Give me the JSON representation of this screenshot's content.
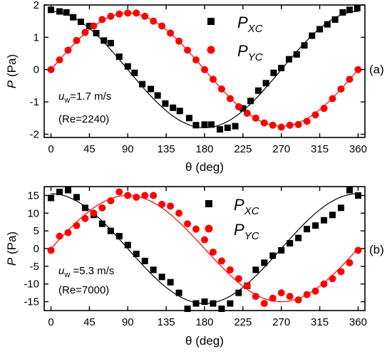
{
  "colors": {
    "xc": "#000000",
    "yc": "#ff0000"
  },
  "chart_data": [
    {
      "type": "scatter",
      "panel_label": "(a)",
      "ylabel": {
        "symbol": "P",
        "unit": " (Pa)"
      },
      "xlabel": {
        "symbol": "θ",
        "unit": " (deg)"
      },
      "xlim": [
        -8,
        368
      ],
      "ylim": [
        -2.1,
        2.0
      ],
      "x_ticks": [
        0,
        45,
        90,
        135,
        180,
        225,
        270,
        315,
        360
      ],
      "y_ticks": [
        -2,
        -1,
        0,
        1,
        2
      ],
      "annotation": {
        "u_symbol": "u",
        "u_sub": "w",
        "u_value": "=1.7 m/s",
        "re": "(Re=2240)"
      },
      "legend": {
        "placement": "top-right",
        "entries": [
          {
            "base": "P",
            "sub": "XC"
          },
          {
            "base": "P",
            "sub": "YC"
          }
        ]
      },
      "series": [
        {
          "name": "P_XC",
          "marker": "square",
          "fit": {
            "amp": 1.8,
            "phase": 0
          },
          "x": [
            0,
            10,
            18,
            26,
            35,
            45,
            53,
            62,
            70,
            80,
            90,
            98,
            107,
            117,
            125,
            134,
            143,
            151,
            162,
            170,
            180,
            188,
            198,
            207,
            216,
            225,
            234,
            243,
            252,
            261,
            270,
            279,
            288,
            297,
            306,
            315,
            324,
            333,
            342,
            350,
            359
          ],
          "y": [
            1.85,
            1.8,
            1.77,
            1.62,
            1.48,
            1.35,
            1.13,
            0.9,
            0.82,
            0.4,
            0.1,
            -0.1,
            -0.45,
            -0.6,
            -0.8,
            -1.05,
            -1.18,
            -1.28,
            -1.5,
            -1.72,
            -1.7,
            -1.7,
            -1.85,
            -1.8,
            -1.75,
            -1.2,
            -0.97,
            -0.65,
            -0.42,
            -0.1,
            0.05,
            0.32,
            0.47,
            0.75,
            1.05,
            1.25,
            1.4,
            1.55,
            1.77,
            1.85,
            1.9
          ]
        },
        {
          "name": "P_YC",
          "marker": "circle",
          "fit": {
            "amp": 1.75,
            "phase": 90
          },
          "x": [
            0,
            10,
            20,
            30,
            40,
            50,
            60,
            70,
            80,
            90,
            100,
            110,
            120,
            130,
            140,
            150,
            160,
            170,
            180,
            190,
            200,
            210,
            220,
            230,
            240,
            250,
            260,
            270,
            280,
            290,
            300,
            310,
            320,
            330,
            340,
            350,
            360
          ],
          "y": [
            0.0,
            0.3,
            0.6,
            0.9,
            1.15,
            1.35,
            1.55,
            1.65,
            1.72,
            1.75,
            1.75,
            1.65,
            1.5,
            1.35,
            1.13,
            0.88,
            0.6,
            0.3,
            0.0,
            -0.3,
            -0.6,
            -0.9,
            -1.15,
            -1.35,
            -1.5,
            -1.65,
            -1.72,
            -1.78,
            -1.72,
            -1.7,
            -1.6,
            -1.4,
            -1.2,
            -0.9,
            -0.6,
            -0.3,
            0.0
          ]
        }
      ]
    },
    {
      "type": "scatter",
      "panel_label": "(b)",
      "ylabel": {
        "symbol": "P",
        "unit": " (Pa)"
      },
      "xlabel": {
        "symbol": "θ",
        "unit": " (deg)"
      },
      "xlim": [
        -8,
        368
      ],
      "ylim": [
        -17.5,
        17.5
      ],
      "x_ticks": [
        0,
        45,
        90,
        135,
        180,
        225,
        270,
        315,
        360
      ],
      "y_ticks": [
        -15,
        -10,
        -5,
        0,
        5,
        10,
        15
      ],
      "annotation": {
        "u_symbol": "u",
        "u_sub": "w",
        "u_value": " =5.3 m/s",
        "re": "(Re=7000)"
      },
      "legend": {
        "placement": "top-right",
        "entries": [
          {
            "base": "P",
            "sub": "XC"
          },
          {
            "base": "P",
            "sub": "YC"
          }
        ]
      },
      "series": [
        {
          "name": "P_XC",
          "marker": "square",
          "fit": {
            "amp": 15.5,
            "phase": 0
          },
          "x": [
            0,
            10,
            20,
            30,
            40,
            50,
            60,
            70,
            80,
            90,
            100,
            110,
            120,
            130,
            140,
            150,
            160,
            170,
            180,
            190,
            200,
            210,
            220,
            230,
            240,
            250,
            260,
            270,
            280,
            290,
            300,
            310,
            320,
            330,
            340,
            350,
            360
          ],
          "y": [
            14.3,
            16.0,
            16.5,
            14.5,
            11.5,
            9.5,
            7.0,
            5.0,
            3.5,
            1.0,
            -1.5,
            -3.5,
            -6.0,
            -8.0,
            -9.5,
            -12.5,
            -17.0,
            -15.5,
            -15.0,
            -15.5,
            -17.0,
            -15.5,
            -12.5,
            -10.5,
            -6.0,
            -4.0,
            -2.0,
            -0.5,
            1.5,
            3.0,
            5.5,
            6.5,
            8.0,
            9.5,
            11.5,
            16.5,
            15.0
          ]
        },
        {
          "name": "P_YC",
          "marker": "circle",
          "fit": {
            "amp": 15.0,
            "phase": 90
          },
          "x": [
            0,
            10,
            20,
            30,
            40,
            50,
            60,
            70,
            80,
            90,
            100,
            110,
            120,
            130,
            140,
            150,
            160,
            170,
            180,
            190,
            200,
            210,
            220,
            230,
            240,
            250,
            260,
            270,
            280,
            290,
            300,
            310,
            320,
            330,
            340,
            350,
            360
          ],
          "y": [
            -0.5,
            3.5,
            4.5,
            6.5,
            8.5,
            10.0,
            11.5,
            13.5,
            16.0,
            15.0,
            14.5,
            15.0,
            15.0,
            12.5,
            12.0,
            10.0,
            7.0,
            5.5,
            2.5,
            -1.0,
            -3.5,
            -6.0,
            -8.5,
            -10.5,
            -13.5,
            -15.5,
            -14.0,
            -12.5,
            -13.5,
            -14.5,
            -13.0,
            -12.0,
            -10.0,
            -8.5,
            -6.5,
            -4.0,
            -0.5
          ]
        }
      ]
    }
  ]
}
